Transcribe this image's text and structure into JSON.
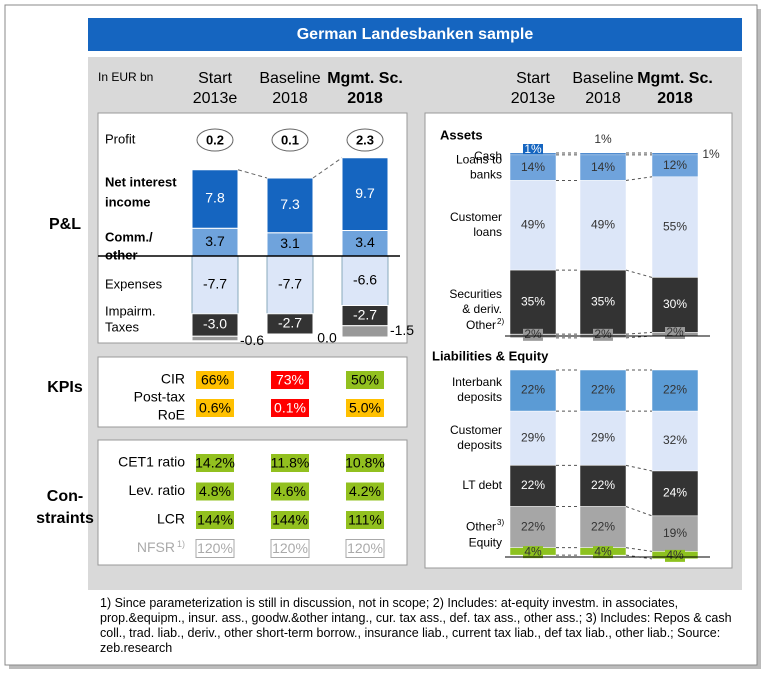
{
  "title": "German Landesbanken sample",
  "unit_label": "In EUR bn",
  "scenarios": [
    {
      "name": "Start",
      "sub": "2013e"
    },
    {
      "name": "Baseline",
      "sub": "2018"
    },
    {
      "name": "Mgmt. Sc.",
      "sub": "2018"
    }
  ],
  "pnl": {
    "label": "P&L",
    "profit": {
      "label": "Profit",
      "values": [
        0.2,
        0.1,
        2.3
      ]
    },
    "series": [
      {
        "name": [
          "Net interest",
          "income"
        ],
        "color": "#1565c0",
        "text_color": "#ffffff",
        "values": [
          7.8,
          7.3,
          9.7
        ]
      },
      {
        "name": [
          "Comm./",
          "other"
        ],
        "color": "#6fa3dc",
        "text_color": "#000000",
        "values": [
          3.7,
          3.1,
          3.4
        ]
      },
      {
        "name": [
          "Expenses"
        ],
        "color": "#dce6f8",
        "text_color": "#000000",
        "values": [
          -7.7,
          -7.7,
          -6.6
        ]
      },
      {
        "name": [
          "Impairm."
        ],
        "color": "#333333",
        "text_color": "#ffffff",
        "values": [
          -3.0,
          -2.7,
          -2.7
        ],
        "value_labels": [
          "-3.0",
          "-2.7",
          "-2.7"
        ]
      },
      {
        "name": [
          "Taxes"
        ],
        "color": "#999999",
        "text_color": "#000000",
        "values": [
          -0.6,
          0.0,
          -1.5
        ],
        "value_labels": [
          "-0.6",
          "0.0",
          "-1.5"
        ]
      }
    ]
  },
  "kpis": {
    "label": "KPIs",
    "rows": [
      {
        "label": [
          "CIR"
        ],
        "cells": [
          {
            "text": "66%",
            "color": "#ffc000"
          },
          {
            "text": "73%",
            "color": "#ff0000"
          },
          {
            "text": "50%",
            "color": "#92c01f"
          }
        ]
      },
      {
        "label": [
          "Post-tax",
          "RoE"
        ],
        "cells": [
          {
            "text": "0.6%",
            "color": "#ffc000"
          },
          {
            "text": "0.1%",
            "color": "#ff0000"
          },
          {
            "text": "5.0%",
            "color": "#ffc000"
          }
        ]
      }
    ]
  },
  "constraints": {
    "label": [
      "Con-",
      "straints"
    ],
    "rows": [
      {
        "label": "CET1 ratio",
        "cells": [
          {
            "text": "14.2%",
            "color": "#92c01f"
          },
          {
            "text": "11.8%",
            "color": "#92c01f"
          },
          {
            "text": "10.8%",
            "color": "#92c01f"
          }
        ]
      },
      {
        "label": "Lev. ratio",
        "cells": [
          {
            "text": "4.8%",
            "color": "#92c01f"
          },
          {
            "text": "4.6%",
            "color": "#92c01f"
          },
          {
            "text": "4.2%",
            "color": "#92c01f"
          }
        ]
      },
      {
        "label": "LCR",
        "cells": [
          {
            "text": "144%",
            "color": "#92c01f"
          },
          {
            "text": "144%",
            "color": "#92c01f"
          },
          {
            "text": "111%",
            "color": "#92c01f"
          }
        ]
      },
      {
        "label": "NFSR",
        "note": "1)",
        "cells": [
          {
            "text": "120%"
          },
          {
            "text": "120%"
          },
          {
            "text": "120%"
          }
        ]
      }
    ]
  },
  "assets": {
    "title": "Assets",
    "series": [
      {
        "name": [
          "Cash"
        ],
        "color": "#1565c0",
        "values": [
          1,
          1,
          1
        ],
        "value_labels": [
          "1%",
          "1%",
          "1%"
        ]
      },
      {
        "name": [
          "Loans to",
          "banks"
        ],
        "color": "#6fa3dc",
        "values": [
          14,
          14,
          12
        ],
        "value_labels": [
          "14%",
          "14%",
          "12%"
        ]
      },
      {
        "name": [
          "Customer",
          "loans"
        ],
        "color": "#dce6f8",
        "values": [
          49,
          49,
          55
        ],
        "value_labels": [
          "49%",
          "49%",
          "55%"
        ]
      },
      {
        "name": [
          "Securities",
          "& deriv."
        ],
        "color": "#333333",
        "values": [
          35,
          35,
          30
        ],
        "value_labels": [
          "35%",
          "35%",
          "30%"
        ]
      },
      {
        "name": [
          "Other"
        ],
        "note": "2)",
        "color": "#999999",
        "values": [
          2,
          2,
          2
        ],
        "value_labels": [
          "2%",
          "2%",
          "2%"
        ]
      }
    ]
  },
  "liabilities": {
    "title": "Liabilities & Equity",
    "series": [
      {
        "name": [
          "Interbank",
          "deposits"
        ],
        "color": "#5b9bd5",
        "values": [
          22,
          22,
          22
        ],
        "value_labels": [
          "22%",
          "22%",
          "22%"
        ]
      },
      {
        "name": [
          "Customer",
          "deposits"
        ],
        "color": "#dce6f8",
        "values": [
          29,
          29,
          32
        ],
        "value_labels": [
          "29%",
          "29%",
          "32%"
        ]
      },
      {
        "name": [
          "LT debt"
        ],
        "color": "#333333",
        "values": [
          22,
          22,
          24
        ],
        "value_labels": [
          "22%",
          "22%",
          "24%"
        ]
      },
      {
        "name": [
          "Other"
        ],
        "note": "3)",
        "color": "#a6a6a6",
        "values": [
          22,
          22,
          19
        ],
        "value_labels": [
          "22%",
          "22%",
          "19%"
        ]
      },
      {
        "name": [
          "Equity"
        ],
        "color": "#8dc21f",
        "values": [
          4,
          4,
          4
        ],
        "value_labels": [
          "4%",
          "4%",
          "4%"
        ]
      }
    ]
  },
  "footnote": "1) Since parameterization is still in discussion, not in scope; 2) Includes: at-equity investm. in associates, prop.&equipm., insur. ass., goodw.&other intang., cur. tax ass., def. tax ass., other ass.; 3) Includes: Repos & cash coll., trad. liab., deriv., other short-term borrow., insurance liab., current tax liab., def tax liab., other liab.; Source: zeb.research"
}
